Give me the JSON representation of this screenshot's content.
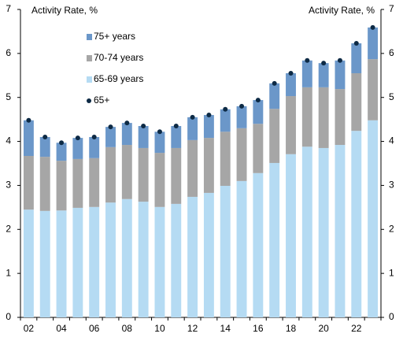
{
  "chart_data": {
    "type": "bar",
    "stacked": true,
    "y_label": "Activity Rate, %",
    "y2_label": "Activity Rate, %",
    "categories": [
      "02",
      null,
      "04",
      null,
      "06",
      null,
      "08",
      null,
      "10",
      null,
      "12",
      null,
      "14",
      null,
      "16",
      null,
      "18",
      null,
      "20",
      null,
      "22",
      null
    ],
    "series": [
      {
        "name": "75+ years",
        "color": "#6b97c9",
        "values": [
          0.81,
          0.45,
          0.41,
          0.48,
          0.48,
          0.46,
          0.5,
          0.5,
          0.48,
          0.5,
          0.52,
          0.52,
          0.51,
          0.5,
          0.54,
          0.58,
          0.52,
          0.61,
          0.55,
          0.65,
          0.68,
          0.72
        ]
      },
      {
        "name": "70-74 years",
        "color": "#a6a6a6",
        "values": [
          1.22,
          1.23,
          1.13,
          1.11,
          1.11,
          1.26,
          1.23,
          1.22,
          1.23,
          1.27,
          1.29,
          1.25,
          1.23,
          1.2,
          1.12,
          1.23,
          1.32,
          1.35,
          1.38,
          1.27,
          1.31,
          1.39
        ]
      },
      {
        "name": "65-69 years",
        "color": "#b5dbf3",
        "values": [
          2.45,
          2.42,
          2.43,
          2.49,
          2.51,
          2.61,
          2.69,
          2.63,
          2.51,
          2.58,
          2.74,
          2.83,
          2.99,
          3.1,
          3.28,
          3.51,
          3.71,
          3.88,
          3.85,
          3.92,
          4.24,
          4.48
        ]
      },
      {
        "name": "65+",
        "type": "scatter",
        "color": "#0d2a45",
        "values": [
          4.48,
          4.1,
          3.97,
          4.08,
          4.1,
          4.33,
          4.42,
          4.35,
          4.22,
          4.35,
          4.55,
          4.6,
          4.73,
          4.8,
          4.94,
          5.32,
          5.55,
          5.84,
          5.78,
          5.84,
          6.23,
          6.59
        ]
      }
    ],
    "ylim": [
      0,
      7
    ],
    "yticks": [
      0,
      1,
      2,
      3,
      4,
      5,
      6,
      7
    ],
    "y2lim": [
      0,
      7
    ],
    "y2ticks": [
      0,
      1,
      2,
      3,
      4,
      5,
      6,
      7
    ],
    "legend": "upper left",
    "grid": false
  }
}
